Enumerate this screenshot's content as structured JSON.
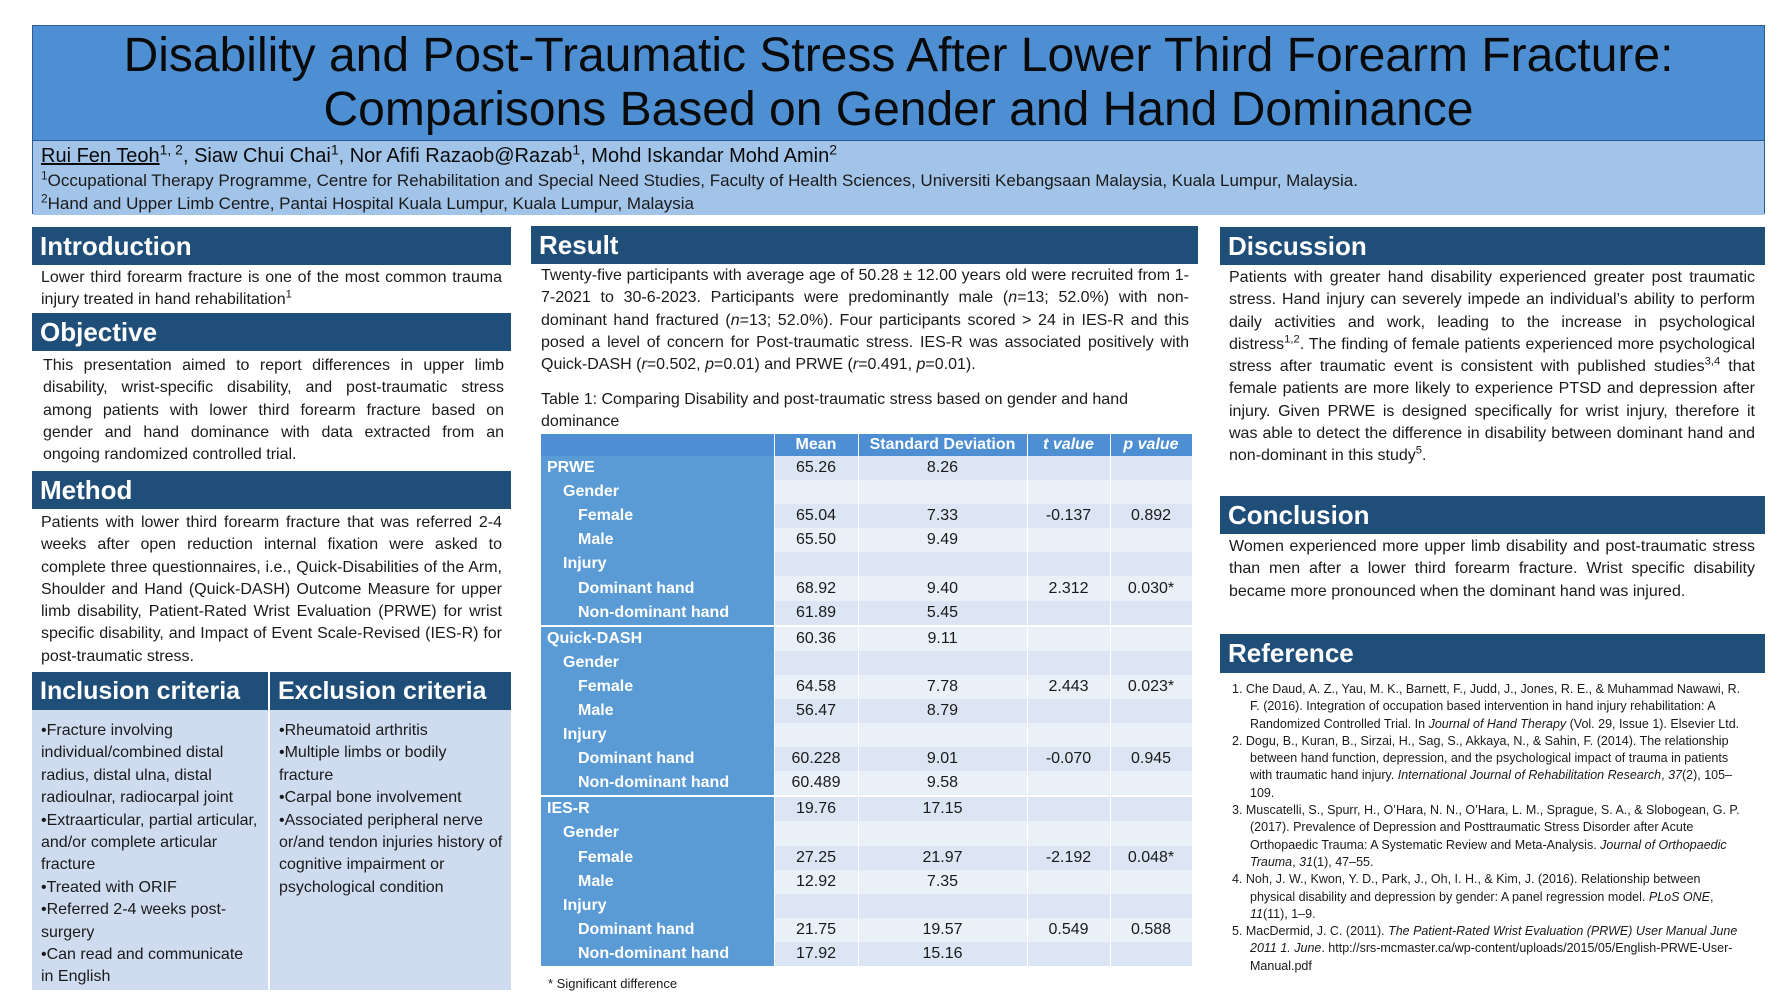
{
  "header": {
    "title_line1": "Disability and Post-Traumatic Stress After Lower Third Forearm Fracture:",
    "title_line2": "Comparisons Based on Gender and Hand Dominance",
    "authors": [
      {
        "name": "Rui Fen Teoh",
        "sup": "1, 2"
      },
      {
        "name": "Siaw Chui Chai",
        "sup": "1"
      },
      {
        "name": "Nor Afifi Razaob@Razab",
        "sup": "1"
      },
      {
        "name": "Mohd Iskandar Mohd Amin",
        "sup": "2"
      }
    ],
    "affiliations": [
      {
        "sup": "1",
        "text": "Occupational Therapy Programme, Centre for Rehabilitation and Special Need Studies, Faculty of Health Sciences, Universiti Kebangsaan Malaysia, Kuala Lumpur, Malaysia."
      },
      {
        "sup": "2",
        "text": "Hand and Upper Limb Centre, Pantai Hospital Kuala Lumpur, Kuala Lumpur, Malaysia"
      }
    ]
  },
  "introduction": {
    "heading": "Introduction",
    "text": "Lower third forearm fracture is one of the most common trauma injury treated in hand rehabilitation",
    "sup": "1"
  },
  "objective": {
    "heading": "Objective",
    "text": "This presentation aimed to report differences in upper limb disability, wrist-specific disability, and post-traumatic stress among patients with lower third forearm fracture based on gender and hand dominance with data extracted from an ongoing randomized controlled trial."
  },
  "method": {
    "heading": "Method",
    "text": "Patients with lower third forearm fracture that was referred 2-4 weeks after open reduction internal fixation were asked to complete three questionnaires, i.e., Quick-Disabilities of the Arm, Shoulder and Hand (Quick-DASH) Outcome Measure for upper limb disability, Patient-Rated Wrist Evaluation (PRWE) for wrist specific disability, and Impact of Event Scale-Revised (IES-R) for post-traumatic stress."
  },
  "inclusion": {
    "heading": "Inclusion criteria",
    "items": [
      "•Fracture involving individual/combined distal radius, distal ulna, distal radioulnar, radiocarpal joint",
      "•Extraarticular, partial articular, and/or complete articular fracture",
      "•Treated with ORIF",
      "•Referred 2-4 weeks post-surgery",
      "•Can read and communicate in English"
    ]
  },
  "exclusion": {
    "heading": "Exclusion criteria",
    "items": [
      "•Rheumatoid arthritis",
      "•Multiple limbs or bodily fracture",
      "•Carpal bone involvement",
      "•Associated peripheral nerve or/and tendon injuries history of cognitive impairment or psychological condition"
    ]
  },
  "result": {
    "heading": "Result",
    "para": [
      {
        "t": "Twenty-five participants with average age of 50.28 ± 12.00 years old were recruited from 1-7-2021 to 30-6-2023. Participants were predominantly male ("
      },
      {
        "t": "n",
        "i": true
      },
      {
        "t": "=13; 52.0%) with non-dominant hand fractured ("
      },
      {
        "t": "n",
        "i": true
      },
      {
        "t": "=13; 52.0%). Four participants scored > 24 in IES-R and this posed a level of concern for Post-traumatic stress. IES-R was associated positively with Quick-DASH ("
      },
      {
        "t": "r",
        "i": true
      },
      {
        "t": "=0.502, "
      },
      {
        "t": "p",
        "i": true
      },
      {
        "t": "=0.01) and PRWE ("
      },
      {
        "t": "r",
        "i": true
      },
      {
        "t": "=0.491, "
      },
      {
        "t": "p",
        "i": true
      },
      {
        "t": "=0.01)."
      }
    ],
    "table_caption": "Table 1: Comparing Disability and post-traumatic stress based on gender and hand dominance",
    "table": {
      "headers": [
        "",
        "Mean",
        "Standard Deviation",
        "t value",
        "p value"
      ],
      "rows": [
        {
          "label": "PRWE",
          "level": 0,
          "mean": "65.26",
          "sd": "8.26",
          "t": "",
          "p": ""
        },
        {
          "label": "Gender",
          "level": 1,
          "mean": "",
          "sd": "",
          "t": "",
          "p": ""
        },
        {
          "label": "Female",
          "level": 2,
          "mean": "65.04",
          "sd": "7.33",
          "t": "-0.137",
          "p": "0.892"
        },
        {
          "label": "Male",
          "level": 2,
          "mean": "65.50",
          "sd": "9.49",
          "t": "",
          "p": ""
        },
        {
          "label": "Injury",
          "level": 1,
          "mean": "",
          "sd": "",
          "t": "",
          "p": ""
        },
        {
          "label": "Dominant hand",
          "level": 2,
          "mean": "68.92",
          "sd": "9.40",
          "t": "2.312",
          "p": "0.030*"
        },
        {
          "label": "Non-dominant hand",
          "level": 2,
          "mean": "61.89",
          "sd": "5.45",
          "t": "",
          "p": ""
        },
        {
          "label": "Quick-DASH",
          "level": 0,
          "mean": "60.36",
          "sd": "9.11",
          "t": "",
          "p": ""
        },
        {
          "label": "Gender",
          "level": 1,
          "mean": "",
          "sd": "",
          "t": "",
          "p": ""
        },
        {
          "label": "Female",
          "level": 2,
          "mean": "64.58",
          "sd": "7.78",
          "t": "2.443",
          "p": "0.023*"
        },
        {
          "label": "Male",
          "level": 2,
          "mean": "56.47",
          "sd": "8.79",
          "t": "",
          "p": ""
        },
        {
          "label": "Injury",
          "level": 1,
          "mean": "",
          "sd": "",
          "t": "",
          "p": ""
        },
        {
          "label": "Dominant hand",
          "level": 2,
          "mean": "60.228",
          "sd": "9.01",
          "t": "-0.070",
          "p": "0.945"
        },
        {
          "label": "Non-dominant hand",
          "level": 2,
          "mean": "60.489",
          "sd": "9.58",
          "t": "",
          "p": ""
        },
        {
          "label": "IES-R",
          "level": 0,
          "mean": "19.76",
          "sd": "17.15",
          "t": "",
          "p": ""
        },
        {
          "label": "Gender",
          "level": 1,
          "mean": "",
          "sd": "",
          "t": "",
          "p": ""
        },
        {
          "label": "Female",
          "level": 2,
          "mean": "27.25",
          "sd": "21.97",
          "t": "-2.192",
          "p": "0.048*"
        },
        {
          "label": "Male",
          "level": 2,
          "mean": "12.92",
          "sd": "7.35",
          "t": "",
          "p": ""
        },
        {
          "label": "Injury",
          "level": 1,
          "mean": "",
          "sd": "",
          "t": "",
          "p": ""
        },
        {
          "label": "Dominant hand",
          "level": 2,
          "mean": "21.75",
          "sd": "19.57",
          "t": "0.549",
          "p": "0.588"
        },
        {
          "label": "Non-dominant hand",
          "level": 2,
          "mean": "17.92",
          "sd": "15.16",
          "t": "",
          "p": ""
        }
      ]
    },
    "footnote": "* Significant difference"
  },
  "discussion": {
    "heading": "Discussion",
    "para": [
      {
        "t": "Patients with greater hand disability experienced greater post traumatic stress. Hand injury can severely impede an individual’s ability to perform daily activities and work, leading to the increase in psychological distress"
      },
      {
        "t": "1,2",
        "sup": true
      },
      {
        "t": ". The finding of female patients experienced more psychological stress after traumatic event is consistent with published studies"
      },
      {
        "t": "3,4",
        "sup": true
      },
      {
        "t": " that female patients are more likely to experience PTSD and depression after injury. Given PRWE is designed specifically for wrist injury, therefore it was able to detect the difference in disability between dominant hand and non-dominant in this study"
      },
      {
        "t": "5",
        "sup": true
      },
      {
        "t": "."
      }
    ]
  },
  "conclusion": {
    "heading": "Conclusion",
    "text": "Women experienced more upper limb disability and post-traumatic stress than men after a lower third forearm fracture. Wrist specific disability became more pronounced when the dominant hand was injured."
  },
  "reference": {
    "heading": "Reference",
    "items": [
      [
        {
          "t": "1.  Che Daud, A. Z., Yau, M. K., Barnett, F., Judd, J., Jones, R. E., & Muhammad Nawawi, R. F. (2016).  Integration of occupation based intervention in hand injury rehabilitation: A Randomized Controlled Trial. In "
        },
        {
          "t": "Journal of Hand Therapy",
          "i": true
        },
        {
          "t": " (Vol. 29, Issue 1). Elsevier Ltd."
        }
      ],
      [
        {
          "t": "2. Dogu, B., Kuran, B., Sirzai, H., Sag, S., Akkaya, N., & Sahin, F. (2014). The relationship between hand function, depression, and the psychological impact of trauma in patients with traumatic hand injury. "
        },
        {
          "t": "International Journal of Rehabilitation Research",
          "i": true
        },
        {
          "t": ", "
        },
        {
          "t": "37",
          "i": true
        },
        {
          "t": "(2), 105–109."
        }
      ],
      [
        {
          "t": "3. Muscatelli, S., Spurr, H., O’Hara, N. N., O’Hara, L. M., Sprague, S. A., & Slobogean, G. P. (2017).  Prevalence of Depression and Posttraumatic Stress Disorder after Acute Orthopaedic Trauma: A Systematic Review and Meta-Analysis. "
        },
        {
          "t": "Journal of Orthopaedic Trauma",
          "i": true
        },
        {
          "t": ", "
        },
        {
          "t": "31",
          "i": true
        },
        {
          "t": "(1), 47–55."
        }
      ],
      [
        {
          "t": "4. Noh, J. W., Kwon, Y. D., Park, J., Oh, I. H., & Kim, J. (2016).  Relationship between physical disability and depression by gender: A panel regression model. "
        },
        {
          "t": "PLoS ONE",
          "i": true
        },
        {
          "t": ", "
        },
        {
          "t": "11",
          "i": true
        },
        {
          "t": "(11), 1–9."
        }
      ],
      [
        {
          "t": "5. MacDermid, J. C. (2011). "
        },
        {
          "t": "The Patient-Rated Wrist Evaluation (PRWE) User Manual June 2011 1. June",
          "i": true
        },
        {
          "t": ". http://srs-mcmaster.ca/wp-content/uploads/2015/05/English-PRWE-User-Manual.pdf"
        }
      ]
    ]
  }
}
